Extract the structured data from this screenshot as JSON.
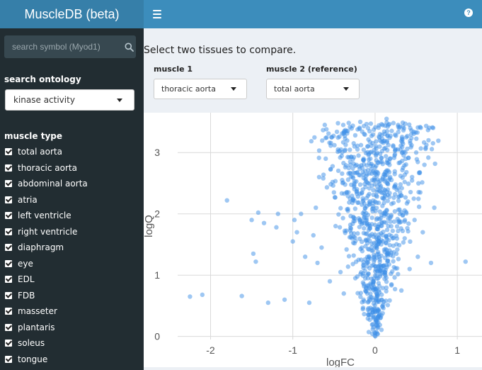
{
  "header": {
    "title": "MuscleDB (beta)"
  },
  "sidebar": {
    "search": {
      "placeholder": "search symbol (Myod1)"
    },
    "ontology": {
      "label": "search ontology",
      "selected": "kinase activity"
    },
    "muscle_type": {
      "label": "muscle type",
      "items": [
        {
          "label": "total aorta",
          "checked": true
        },
        {
          "label": "thoracic aorta",
          "checked": true
        },
        {
          "label": "abdominal aorta",
          "checked": true
        },
        {
          "label": "atria",
          "checked": true
        },
        {
          "label": "left ventricle",
          "checked": true
        },
        {
          "label": "right ventricle",
          "checked": true
        },
        {
          "label": "diaphragm",
          "checked": true
        },
        {
          "label": "eye",
          "checked": true
        },
        {
          "label": "EDL",
          "checked": true
        },
        {
          "label": "FDB",
          "checked": true
        },
        {
          "label": "masseter",
          "checked": true
        },
        {
          "label": "plantaris",
          "checked": true
        },
        {
          "label": "soleus",
          "checked": true
        },
        {
          "label": "tongue",
          "checked": true
        }
      ]
    }
  },
  "main": {
    "prompt": "Select two tissues to compare.",
    "muscle1": {
      "label": "muscle 1",
      "selected": "thoracic aorta"
    },
    "muscle2": {
      "label": "muscle 2 (reference)",
      "selected": "total aorta"
    }
  },
  "chart_data": {
    "type": "scatter",
    "xlabel": "logFC",
    "ylabel": "logQ",
    "xlim": [
      -2.4,
      1.3
    ],
    "ylim": [
      -0.05,
      3.65
    ],
    "xticks": [
      -2,
      -1,
      0,
      1
    ],
    "yticks": [
      0,
      1,
      2,
      3
    ],
    "grid": true,
    "point_color": "#3d8fe8",
    "series": [
      {
        "points": [
          [
            -2.25,
            0.65
          ],
          [
            -2.1,
            0.68
          ],
          [
            -1.8,
            2.22
          ],
          [
            -1.62,
            0.66
          ],
          [
            -1.5,
            1.9
          ],
          [
            -1.48,
            1.35
          ],
          [
            -1.45,
            1.22
          ],
          [
            -1.42,
            2.02
          ],
          [
            -1.35,
            1.85
          ],
          [
            -1.3,
            0.55
          ],
          [
            -1.2,
            1.78
          ],
          [
            -1.18,
            2.0
          ],
          [
            -1.1,
            0.6
          ],
          [
            -1.0,
            1.55
          ],
          [
            -0.98,
            1.9
          ],
          [
            -0.95,
            1.7
          ],
          [
            -0.9,
            2.0
          ],
          [
            -0.85,
            1.3
          ],
          [
            -0.8,
            0.55
          ],
          [
            -0.75,
            1.65
          ],
          [
            -0.72,
            2.1
          ],
          [
            -0.7,
            1.2
          ],
          [
            -0.68,
            2.6
          ],
          [
            -0.65,
            1.45
          ],
          [
            -0.6,
            2.9
          ],
          [
            -0.55,
            0.9
          ],
          [
            -0.53,
            3.25
          ],
          [
            -0.5,
            2.35
          ],
          [
            -0.48,
            1.8
          ],
          [
            -0.45,
            3.05
          ],
          [
            -0.42,
            1.05
          ],
          [
            -0.4,
            2.55
          ],
          [
            -0.38,
            0.7
          ],
          [
            -0.35,
            3.75
          ],
          [
            -0.33,
            2.05
          ],
          [
            -0.3,
            2.8
          ],
          [
            -0.28,
            1.6
          ],
          [
            -0.26,
            3.15
          ],
          [
            -0.24,
            0.95
          ],
          [
            -0.22,
            2.4
          ],
          [
            -0.2,
            1.25
          ],
          [
            -0.18,
            3.5
          ],
          [
            -0.16,
            2.15
          ],
          [
            -0.14,
            0.6
          ],
          [
            -0.12,
            2.7
          ],
          [
            -0.1,
            1.85
          ],
          [
            -0.08,
            0.35
          ],
          [
            -0.06,
            3.0
          ],
          [
            -0.04,
            1.4
          ],
          [
            -0.02,
            0.15
          ],
          [
            0.0,
            0.05
          ],
          [
            0.02,
            0.25
          ],
          [
            0.04,
            1.55
          ],
          [
            0.06,
            3.3
          ],
          [
            0.08,
            0.6
          ],
          [
            0.1,
            2.25
          ],
          [
            0.12,
            1.05
          ],
          [
            0.14,
            3.55
          ],
          [
            0.16,
            1.8
          ],
          [
            0.18,
            2.9
          ],
          [
            0.2,
            0.85
          ],
          [
            0.22,
            3.1
          ],
          [
            0.24,
            2.45
          ],
          [
            0.26,
            1.35
          ],
          [
            0.28,
            3.45
          ],
          [
            0.3,
            2.0
          ],
          [
            0.32,
            0.75
          ],
          [
            0.34,
            2.75
          ],
          [
            0.36,
            1.6
          ],
          [
            0.38,
            3.25
          ],
          [
            0.4,
            2.2
          ],
          [
            0.42,
            1.1
          ],
          [
            0.45,
            2.6
          ],
          [
            0.48,
            1.9
          ],
          [
            0.5,
            3.0
          ],
          [
            0.52,
            1.3
          ],
          [
            0.55,
            2.35
          ],
          [
            0.58,
            1.7
          ],
          [
            0.6,
            2.8
          ],
          [
            0.65,
            3.2
          ],
          [
            0.68,
            1.2
          ],
          [
            0.72,
            2.1
          ],
          [
            0.78,
            3.7
          ],
          [
            0.9,
            3.8
          ],
          [
            0.95,
            3.7
          ],
          [
            1.1,
            1.22
          ]
        ]
      }
    ]
  }
}
